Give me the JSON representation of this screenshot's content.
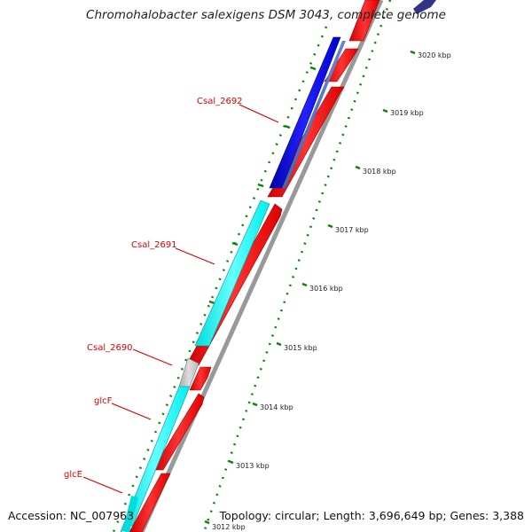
{
  "title": "Chromohalobacter salexigens DSM 3043, complete genome",
  "footer": {
    "accession": "Accession: NC_007963",
    "summary": "Topology: circular; Length: 3,696,649 bp; Genes: 3,388"
  },
  "scale": {
    "unit": "kbp",
    "labels": [
      "3020 kbp",
      "3019 kbp",
      "3018 kbp",
      "3017 kbp",
      "3016 kbp",
      "3015 kbp",
      "3014 kbp",
      "3013 kbp",
      "3012 kbp"
    ]
  },
  "genes": [
    {
      "name": "Csal_2692",
      "color": "#0000ee"
    },
    {
      "name": "Csal_2691",
      "color": "#00ffff"
    },
    {
      "name": "Csal_2690",
      "color": "#bfbfbf"
    },
    {
      "name": "glcF",
      "color": "#00ffff"
    },
    {
      "name": "glcE",
      "color": "#00ffff"
    }
  ],
  "colors": {
    "forward_cds": "#ff0000",
    "backbone": "#999999",
    "tick": "#008800",
    "label": "#dd0000",
    "outer_feature": "#333388"
  }
}
